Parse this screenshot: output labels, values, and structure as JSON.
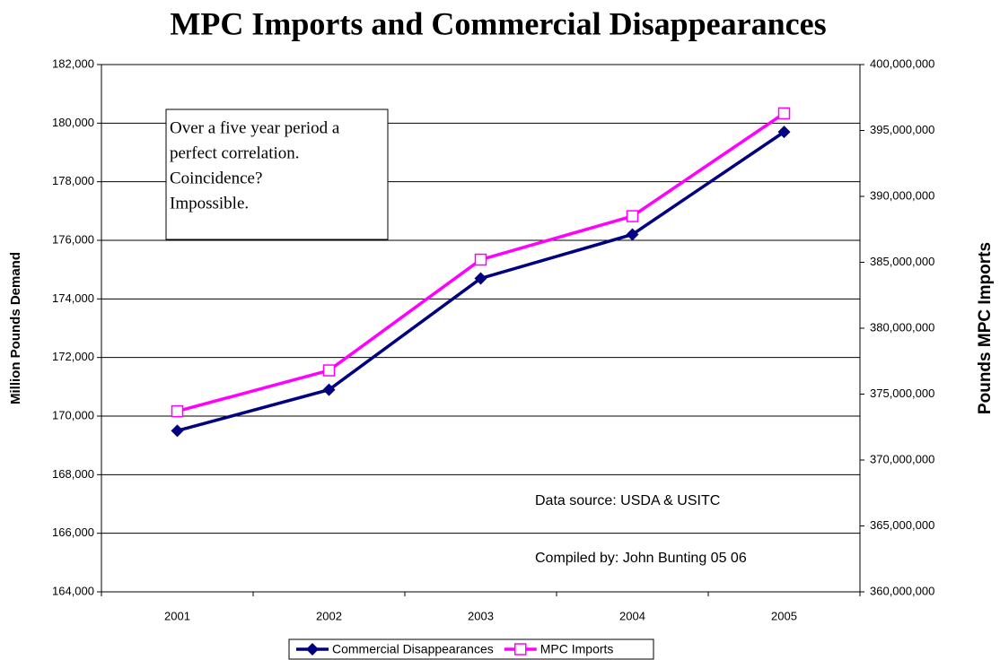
{
  "chart_data": {
    "type": "line",
    "title": "MPC Imports and Commercial Disappearances",
    "y_label": "Million Pounds Demand",
    "y2_label": "Pounds MPC Imports",
    "categories": [
      "2001",
      "2002",
      "2003",
      "2004",
      "2005"
    ],
    "series": [
      {
        "name": "Commercial Disappearances",
        "color": "#000080",
        "marker": "diamond",
        "values": [
          169500,
          170900,
          174700,
          176200,
          179700
        ]
      },
      {
        "name": "MPC Imports",
        "color": "#ff00ff",
        "marker": "square",
        "axis": "y2",
        "values": [
          373700000,
          376800000,
          385200000,
          388500000,
          396300000
        ]
      }
    ],
    "ylim": [
      164000,
      182000
    ],
    "yticks": [
      {
        "value": 164000,
        "label": "164,000"
      },
      {
        "value": 166000,
        "label": "166,000"
      },
      {
        "value": 168000,
        "label": "168,000"
      },
      {
        "value": 170000,
        "label": "170,000"
      },
      {
        "value": 172000,
        "label": "172,000"
      },
      {
        "value": 174000,
        "label": "174,000"
      },
      {
        "value": 176000,
        "label": "176,000"
      },
      {
        "value": 178000,
        "label": "178,000"
      },
      {
        "value": 180000,
        "label": "180,000"
      },
      {
        "value": 182000,
        "label": "182,000"
      }
    ],
    "y2lim": [
      360000000,
      400000000
    ],
    "y2ticks": [
      {
        "value": 360000000,
        "label": "360,000,000"
      },
      {
        "value": 365000000,
        "label": "365,000,000"
      },
      {
        "value": 370000000,
        "label": "370,000,000"
      },
      {
        "value": 375000000,
        "label": "375,000,000"
      },
      {
        "value": 380000000,
        "label": "380,000,000"
      },
      {
        "value": 385000000,
        "label": "385,000,000"
      },
      {
        "value": 390000000,
        "label": "390,000,000"
      },
      {
        "value": 395000000,
        "label": "395,000,000"
      },
      {
        "value": 400000000,
        "label": "400,000,000"
      }
    ],
    "grid": true,
    "legend": "bottom",
    "annotation_box": [
      "Over a five year period a",
      "perfect correlation.",
      "Coincidence?",
      "Impossible."
    ],
    "notes": [
      "Data source: USDA & USITC",
      "Compiled by: John Bunting 05 06"
    ]
  }
}
